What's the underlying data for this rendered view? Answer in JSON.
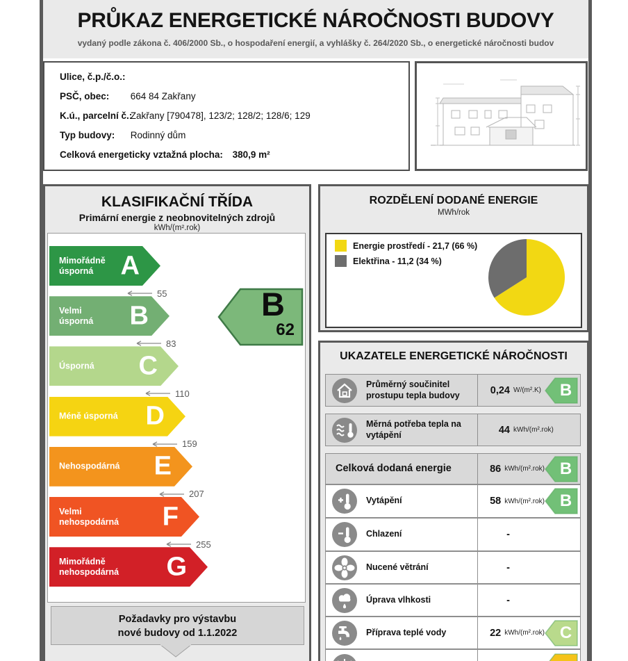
{
  "header": {
    "title": "PRŮKAZ ENERGETICKÉ NÁROČNOSTI BUDOVY",
    "subtitle": "vydaný podle zákona č. 406/2000 Sb., o hospodaření energií, a vyhlášky č. 264/2020 Sb., o energetické náročnosti budov"
  },
  "building_info": {
    "rows": [
      {
        "label": "Ulice, č.p./č.o.:",
        "value": ""
      },
      {
        "label": "PSČ, obec:",
        "value": "664 84 Zakřany"
      },
      {
        "label": "K.ú., parcelní č.:",
        "value": "Zakřany [790478], 123/2; 128/2; 128/6; 129"
      },
      {
        "label": "Typ budovy:",
        "value": "Rodinný dům"
      },
      {
        "label": "Celková energeticky vztažná plocha:",
        "value": "380,9 m²",
        "inline": true,
        "bold_value": true
      }
    ]
  },
  "classification": {
    "title": "KLASIFIKAČNÍ TŘÍDA",
    "subtitle": "Primární energie z neobnovitelných zdrojů",
    "unit": "kWh/(m².rok)",
    "classes": [
      {
        "letter": "A",
        "label": "Mimořádně\núsporná",
        "color": "#2d9646",
        "threshold_below": "55"
      },
      {
        "letter": "B",
        "label": "Velmi\núsporná",
        "color": "#73af73",
        "threshold_below": "83"
      },
      {
        "letter": "C",
        "label": "Úsporná",
        "color": "#b4d78c",
        "threshold_below": "110"
      },
      {
        "letter": "D",
        "label": "Méně úsporná",
        "color": "#f5d412",
        "threshold_below": "159"
      },
      {
        "letter": "E",
        "label": "Nehospodárná",
        "color": "#f3941d",
        "threshold_below": "207"
      },
      {
        "letter": "F",
        "label": "Velmi\nnehospodárná",
        "color": "#f05423",
        "threshold_below": "255"
      },
      {
        "letter": "G",
        "label": "Mimořádně\nnehospodárná",
        "color": "#d22027",
        "threshold_below": null
      }
    ],
    "indicator": {
      "letter": "B",
      "value": "62",
      "color": "#7cb87a",
      "border": "#3f7a47"
    },
    "requirements_note": {
      "line1": "Požadavky pro výstavbu",
      "line2": "nové budovy od 1.1.2022"
    }
  },
  "energy_split": {
    "title": "ROZDĚLENÍ DODANÉ ENERGIE",
    "unit": "MWh/rok",
    "legend": [
      {
        "text": "Energie prostředí - 21,7 (66 %)",
        "color": "#f2d813"
      },
      {
        "text": "Elektřina - 11,2 (34 %)",
        "color": "#6d6d6d"
      }
    ]
  },
  "indicators": {
    "title": "UKAZATELE ENERGETICKÉ NÁROČNOSTI",
    "rows": [
      {
        "icon": "house-icon",
        "label": "Průměrný součinitel prostupu tepla budovy",
        "value": "0,24",
        "unit": "W/(m².K)",
        "badge": "B",
        "badge_color": "#72c077",
        "bg": "gray"
      },
      {
        "icon": "heat-waves-icon",
        "label": "Měrná potřeba tepla na vytápění",
        "value": "44",
        "unit": "kWh/(m².rok)",
        "badge": "",
        "badge_color": "",
        "bg": "gray"
      },
      {
        "icon": "",
        "label": "Celková dodaná energie",
        "value": "86",
        "unit": "kWh/(m².rok)",
        "badge": "B",
        "badge_color": "#72c077",
        "bg": "gray",
        "bold": true
      },
      {
        "icon": "thermometer-plus-icon",
        "label": "Vytápění",
        "value": "58",
        "unit": "kWh/(m².rok)",
        "badge": "B",
        "badge_color": "#72c077",
        "bg": "white"
      },
      {
        "icon": "thermometer-minus-icon",
        "label": "Chlazení",
        "value": "-",
        "unit": "",
        "badge": "",
        "badge_color": "",
        "bg": "white"
      },
      {
        "icon": "fan-icon",
        "label": "Nucené větrání",
        "value": "-",
        "unit": "",
        "badge": "",
        "badge_color": "",
        "bg": "white"
      },
      {
        "icon": "humidity-icon",
        "label": "Úprava vlhkosti",
        "value": "-",
        "unit": "",
        "badge": "",
        "badge_color": "",
        "bg": "white"
      },
      {
        "icon": "faucet-icon",
        "label": "Příprava teplé vody",
        "value": "22",
        "unit": "kWh/(m².rok)",
        "badge": "C",
        "badge_color": "#b9da8c",
        "bg": "white"
      },
      {
        "icon": "lightbulb-icon",
        "label": "",
        "value": "",
        "unit": "",
        "badge": "",
        "badge_color": "#f5c319",
        "bg": "white"
      }
    ]
  },
  "chart_data": [
    {
      "type": "pie",
      "title": "ROZDĚLENÍ DODANÉ ENERGIE",
      "unit": "MWh/rok",
      "slices": [
        {
          "label": "Energie prostředí",
          "value": 21.7,
          "percent": 66,
          "color": "#f2d813"
        },
        {
          "label": "Elektřina",
          "value": 11.2,
          "percent": 34,
          "color": "#6d6d6d"
        }
      ],
      "legend_position": "top-left",
      "start_angle": "12-oclock",
      "direction": "clockwise"
    },
    {
      "type": "scale",
      "title": "KLASIFIKAČNÍ TŘÍDA",
      "subtitle": "Primární energie z neobnovitelných zdrojů",
      "unit": "kWh/(m².rok)",
      "categories": [
        "A",
        "B",
        "C",
        "D",
        "E",
        "F",
        "G"
      ],
      "category_labels": [
        "Mimořádně úsporná",
        "Velmi úsporná",
        "Úsporná",
        "Méně úsporná",
        "Nehospodárná",
        "Velmi nehospodárná",
        "Mimořádně nehospodárná"
      ],
      "upper_bounds": [
        55,
        83,
        110,
        159,
        207,
        255,
        null
      ],
      "building_class": "B",
      "building_value": 62
    }
  ]
}
